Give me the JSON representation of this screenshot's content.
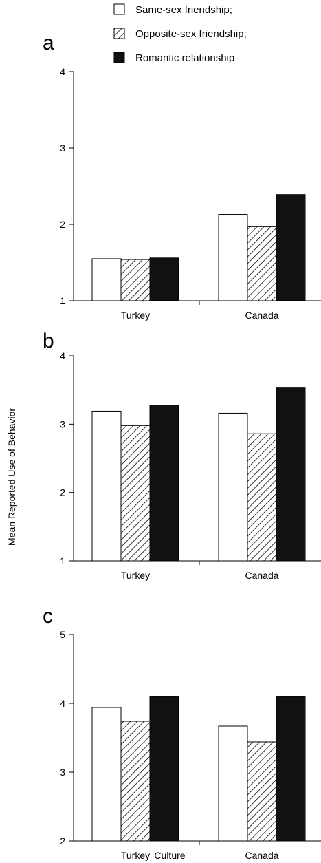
{
  "legend": [
    {
      "label": "Same-sex friendship;",
      "fill": "white"
    },
    {
      "label": "Opposite-sex friendship;",
      "fill": "hatch"
    },
    {
      "label": "Romantic relationship",
      "fill": "black"
    }
  ],
  "ylabel": "Mean Reported Use of Behavior",
  "xlabel": "Culture",
  "chart_data": [
    {
      "type": "bar",
      "panel": "a",
      "categories": [
        "Turkey",
        "Canada"
      ],
      "series": [
        {
          "name": "Same-sex friendship;",
          "values": [
            1.55,
            2.13
          ]
        },
        {
          "name": "Opposite-sex friendship;",
          "values": [
            1.54,
            1.97
          ]
        },
        {
          "name": "Romantic relationship",
          "values": [
            1.56,
            2.39
          ]
        }
      ],
      "ylim": [
        1,
        4
      ],
      "yticks": [
        "1",
        "2",
        "3",
        "4"
      ]
    },
    {
      "type": "bar",
      "panel": "b",
      "categories": [
        "Turkey",
        "Canada"
      ],
      "series": [
        {
          "name": "Same-sex friendship;",
          "values": [
            3.19,
            3.16
          ]
        },
        {
          "name": "Opposite-sex friendship;",
          "values": [
            2.98,
            2.86
          ]
        },
        {
          "name": "Romantic relationship",
          "values": [
            3.28,
            3.53
          ]
        }
      ],
      "ylim": [
        1,
        4
      ],
      "yticks": [
        "1",
        "2",
        "3",
        "4"
      ]
    },
    {
      "type": "bar",
      "panel": "c",
      "categories": [
        "Turkey",
        "Canada"
      ],
      "series": [
        {
          "name": "Same-sex friendship;",
          "values": [
            3.94,
            3.67
          ]
        },
        {
          "name": "Opposite-sex friendship;",
          "values": [
            3.74,
            3.44
          ]
        },
        {
          "name": "Romantic relationship",
          "values": [
            4.1,
            4.1
          ]
        }
      ],
      "ylim": [
        2,
        5
      ],
      "yticks": [
        "2",
        "3",
        "4",
        "5"
      ]
    }
  ]
}
